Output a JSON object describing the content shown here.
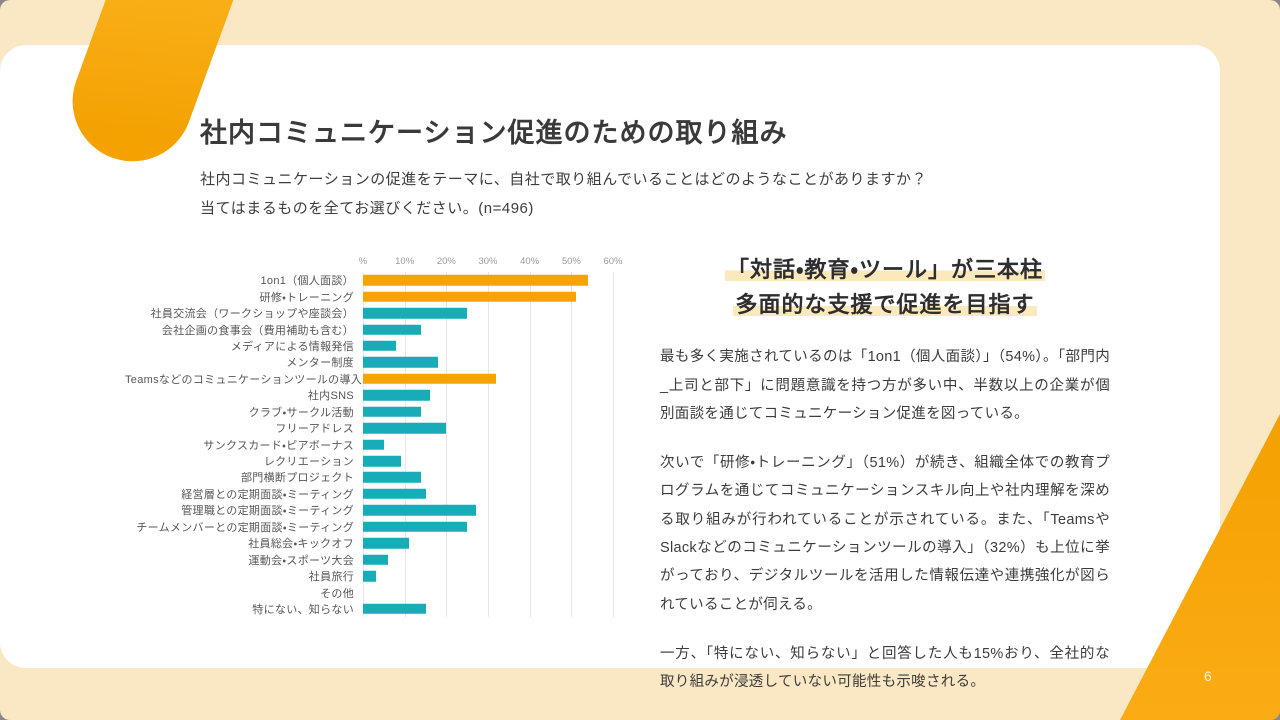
{
  "slide": {
    "title": "社内コミュニケーション促進のための取り組み",
    "lead_line1": "社内コミュニケーションの促進をテーマに、自社で取り組んでいることはどのようなことがありますか？",
    "lead_line2": "当てはまるものを全てお選びください。(n=496)",
    "page_number": "6"
  },
  "insight": {
    "heading_line1": "「対話・教育・ツール」が三本柱",
    "heading_line2": "多面的な支援で促進を目指す",
    "paragraphs": [
      "最も多く実施されているのは「1on1（個人面談）」（54%）。「部門内_上司と部下」に問題意識を持つ方が多い中、半数以上の企業が個別面談を通じてコミュニケーション促進を図っている。",
      "次いで「研修・トレーニング」（51%）が続き、組織全体での教育プログラムを通じてコミュニケーションスキル向上や社内理解を深める取り組みが行われていることが示されている。また、「TeamsやSlackなどのコミュニケーションツールの導入」（32%）も上位に挙がっており、デジタルツールを活用した情報伝達や連携強化が図られていることが伺える。",
      "一方、「特にない、知らない」と回答した人も15%おり、全社的な取り組みが浸透していない可能性も示唆される。"
    ]
  },
  "chart_data": {
    "type": "bar",
    "orientation": "horizontal",
    "unit": "%",
    "xlim": [
      0,
      60
    ],
    "grid": true,
    "ticks": [
      {
        "label": "%",
        "value": 0
      },
      {
        "label": "10%",
        "value": 10
      },
      {
        "label": "20%",
        "value": 20
      },
      {
        "label": "30%",
        "value": 30
      },
      {
        "label": "40%",
        "value": 40
      },
      {
        "label": "50%",
        "value": 50
      },
      {
        "label": "60%",
        "value": 60
      }
    ],
    "categories": [
      "1on1（個人面談）",
      "研修・トレーニング",
      "社員交流会（ワークショップや座談会）",
      "会社企画の食事会（費用補助も含む）",
      "メディアによる情報発信",
      "メンター制度",
      "Teamsなどのコミュニケーションツールの導入",
      "社内SNS",
      "クラブ・サークル活動",
      "フリーアドレス",
      "サンクスカード・ピアボーナス",
      "レクリエーション",
      "部門横断プロジェクト",
      "経営層との定期面談・ミーティング",
      "管理職との定期面談・ミーティング",
      "チームメンバーとの定期面談・ミーティング",
      "社員総会・キックオフ",
      "運動会・スポーツ大会",
      "社員旅行",
      "その他",
      "特にない、知らない"
    ],
    "values": [
      54,
      51,
      25,
      14,
      8,
      18,
      32,
      16,
      14,
      20,
      5,
      9,
      14,
      15,
      27,
      25,
      11,
      6,
      3,
      0,
      15
    ],
    "highlighted": [
      true,
      true,
      false,
      false,
      false,
      false,
      true,
      false,
      false,
      false,
      false,
      false,
      false,
      false,
      false,
      false,
      false,
      false,
      false,
      false,
      false
    ],
    "colors": {
      "highlight": "#F6A404",
      "default": "#17ACB8"
    }
  },
  "theme": {
    "background_cream": "#FAE7C4",
    "panel_white": "#FFFFFF",
    "accent_orange": "#F5A201",
    "accent_teal": "#17ACB8",
    "highlight_yellow": "#FBE8BB"
  }
}
